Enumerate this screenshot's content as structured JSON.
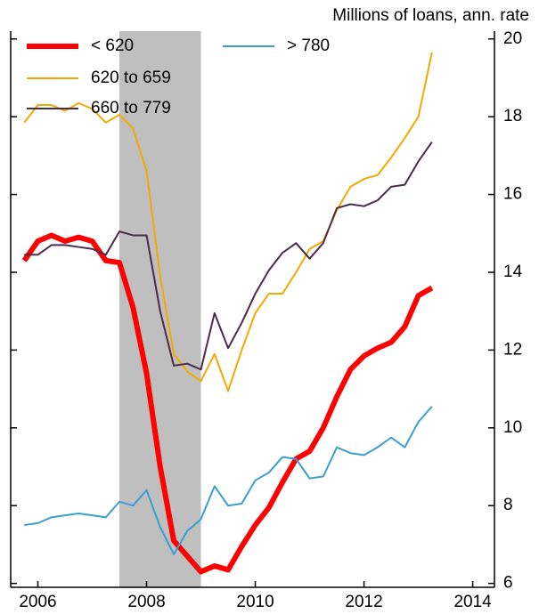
{
  "chart_data": {
    "type": "line",
    "y_axis_label": "Millions of loans, ann. rate",
    "x": [
      2006.25,
      2006.5,
      2006.75,
      2007,
      2007.25,
      2007.5,
      2007.75,
      2008,
      2008.25,
      2008.5,
      2008.75,
      2009,
      2009.25,
      2009.5,
      2009.75,
      2010,
      2010.25,
      2010.5,
      2010.75,
      2011,
      2011.25,
      2011.5,
      2011.75,
      2012,
      2012.25,
      2012.5,
      2012.75,
      2013,
      2013.25,
      2013.5,
      2013.75
    ],
    "series": [
      {
        "name": "< 620",
        "color": "#ff0000",
        "width": 6,
        "values": [
          14.3,
          14.8,
          14.95,
          14.8,
          14.9,
          14.8,
          14.3,
          14.25,
          13.1,
          11.4,
          9.0,
          7.1,
          6.7,
          6.3,
          6.45,
          6.35,
          6.95,
          7.5,
          7.95,
          8.6,
          9.2,
          9.4,
          10.0,
          10.8,
          11.5,
          11.85,
          12.05,
          12.2,
          12.6,
          13.4,
          13.6
        ]
      },
      {
        "name": "620 to 659",
        "color": "#f5a800",
        "width": 2,
        "values": [
          17.85,
          18.3,
          18.3,
          18.15,
          18.35,
          18.2,
          17.85,
          18.05,
          17.7,
          16.6,
          13.9,
          11.9,
          11.45,
          11.2,
          11.9,
          10.95,
          12.0,
          12.95,
          13.45,
          13.45,
          14.0,
          14.6,
          14.8,
          15.6,
          16.2,
          16.4,
          16.5,
          16.95,
          17.45,
          18.0,
          19.65
        ]
      },
      {
        "name": "660 to 779",
        "color": "#4b2a4a",
        "width": 2,
        "values": [
          14.45,
          14.45,
          14.7,
          14.7,
          14.65,
          14.6,
          14.45,
          15.05,
          14.95,
          14.95,
          13.0,
          11.6,
          11.65,
          11.5,
          12.95,
          12.05,
          12.7,
          13.45,
          14.05,
          14.5,
          14.75,
          14.35,
          14.75,
          15.65,
          15.75,
          15.7,
          15.85,
          16.2,
          16.25,
          16.85,
          17.35
        ]
      },
      {
        "name": "> 780",
        "color": "#3a9fd0",
        "width": 2,
        "values": [
          7.5,
          7.55,
          7.7,
          7.75,
          7.8,
          7.75,
          7.7,
          8.1,
          8.0,
          8.4,
          7.45,
          6.75,
          7.35,
          7.65,
          8.5,
          8.0,
          8.05,
          8.65,
          8.85,
          9.25,
          9.2,
          8.7,
          8.75,
          9.5,
          9.35,
          9.3,
          9.5,
          9.75,
          9.5,
          10.15,
          10.55
        ]
      }
    ],
    "shaded_range": [
      2008,
      2009.5
    ],
    "shade_color": "#bfbfbf",
    "xlim": [
      2006,
      2014.9
    ],
    "xticks": [
      {
        "value": 2006.5,
        "label": "2006"
      },
      {
        "value": 2008.5,
        "label": "2008"
      },
      {
        "value": 2010.5,
        "label": "2010"
      },
      {
        "value": 2012.5,
        "label": "2012"
      },
      {
        "value": 2014.5,
        "label": "2014"
      }
    ],
    "ylim": [
      5.9,
      20.2
    ],
    "yticks": [
      6,
      8,
      10,
      12,
      14,
      16,
      18,
      20
    ]
  }
}
